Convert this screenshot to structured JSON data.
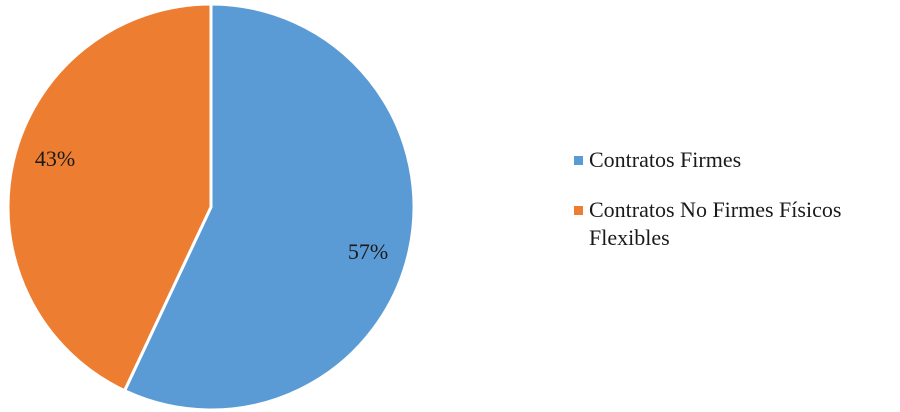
{
  "chart_data": {
    "type": "pie",
    "title": "",
    "start_angle_deg": 0,
    "direction": "clockwise",
    "legend_position": "right",
    "slices": [
      {
        "label": "Contratos Firmes",
        "value": 57,
        "display": "57%",
        "color": "#5B9BD5"
      },
      {
        "label": "Contratos No Firmes Físicos Flexibles",
        "value": 43,
        "display": "43%",
        "color": "#ED7D31"
      }
    ]
  }
}
